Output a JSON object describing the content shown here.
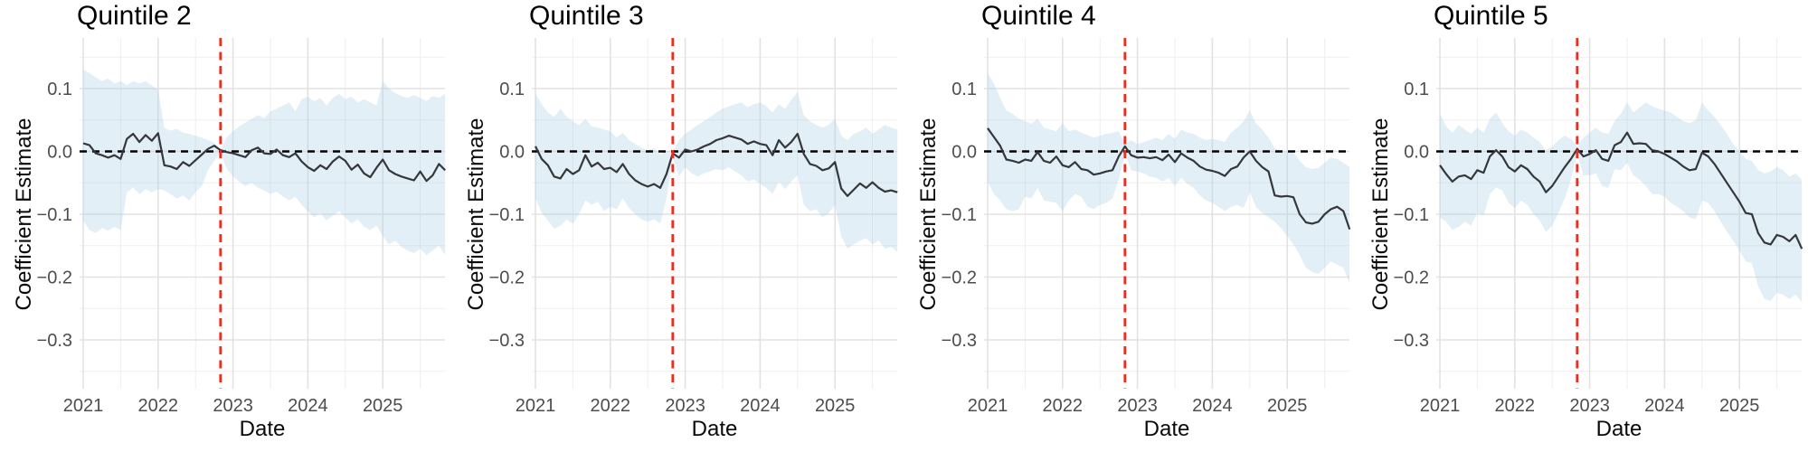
{
  "figure_title": "",
  "colors": {
    "background": "#ffffff",
    "ribbon_fill": "#b0d2e4",
    "ribbon_opacity": 0.35,
    "estimate_line": "#34383c",
    "zero_line": "#000000",
    "reference_line": "#ec2d20",
    "grid_major": "#e2e2e2",
    "grid_minor": "#efefef",
    "tick_text": "#4d4d4d",
    "title_text": "#000000"
  },
  "chart_data": [
    {
      "type": "line",
      "title": "Quintile 2",
      "xlabel": "Date",
      "ylabel": "Coefficient Estimate",
      "x_tick_labels": [
        "2021",
        "2022",
        "2023",
        "2024",
        "2025"
      ],
      "x_tick_values": [
        2021,
        2022,
        2023,
        2024,
        2025
      ],
      "y_tick_labels": [
        "0.1",
        "0.0",
        "−0.1",
        "−0.2",
        "−0.3"
      ],
      "y_tick_values": [
        0.1,
        0,
        -0.1,
        -0.2,
        -0.3
      ],
      "ylim": [
        -0.378,
        0.181
      ],
      "x_start": "2021-01",
      "x_interval": "month",
      "reference_date": "2022-11",
      "zero_line_y": 0,
      "grid": true,
      "legend": "none",
      "series": [
        {
          "name": "estimate",
          "values": [
            0.013,
            0.01,
            -0.003,
            -0.006,
            -0.01,
            -0.006,
            -0.012,
            0.02,
            0.028,
            0.015,
            0.026,
            0.017,
            0.029,
            -0.022,
            -0.024,
            -0.028,
            -0.017,
            -0.023,
            -0.014,
            -0.005,
            0.004,
            0.009,
            0.002,
            -0.001,
            -0.003,
            -0.006,
            -0.009,
            0.002,
            0.006,
            -0.003,
            -0.004,
            0.003,
            -0.006,
            -0.009,
            -0.003,
            -0.016,
            -0.025,
            -0.031,
            -0.022,
            -0.028,
            -0.016,
            -0.008,
            -0.015,
            -0.029,
            -0.021,
            -0.035,
            -0.041,
            -0.026,
            -0.013,
            -0.03,
            -0.036,
            -0.04,
            -0.043,
            -0.046,
            -0.032,
            -0.047,
            -0.038,
            -0.02,
            -0.03
          ]
        },
        {
          "name": "ci_upper",
          "values": [
            0.13,
            0.125,
            0.118,
            0.112,
            0.116,
            0.108,
            0.112,
            0.105,
            0.112,
            0.108,
            0.112,
            0.105,
            0.098,
            0.038,
            0.033,
            0.036,
            0.03,
            0.028,
            0.025,
            0.022,
            0.018,
            0.014,
            0.003,
            0.022,
            0.032,
            0.04,
            0.046,
            0.052,
            0.058,
            0.053,
            0.064,
            0.068,
            0.073,
            0.078,
            0.064,
            0.083,
            0.087,
            0.08,
            0.085,
            0.073,
            0.085,
            0.092,
            0.083,
            0.087,
            0.078,
            0.083,
            0.078,
            0.073,
            0.112,
            0.1,
            0.093,
            0.088,
            0.085,
            0.09,
            0.085,
            0.08,
            0.088,
            0.085,
            0.092
          ]
        },
        {
          "name": "ci_lower",
          "values": [
            -0.11,
            -0.125,
            -0.13,
            -0.122,
            -0.126,
            -0.12,
            -0.125,
            -0.065,
            -0.058,
            -0.068,
            -0.06,
            -0.065,
            -0.06,
            -0.062,
            -0.068,
            -0.075,
            -0.07,
            -0.078,
            -0.065,
            -0.055,
            -0.03,
            -0.015,
            -0.002,
            -0.028,
            -0.04,
            -0.048,
            -0.055,
            -0.05,
            -0.058,
            -0.062,
            -0.068,
            -0.064,
            -0.072,
            -0.078,
            -0.072,
            -0.085,
            -0.095,
            -0.105,
            -0.098,
            -0.11,
            -0.102,
            -0.095,
            -0.105,
            -0.115,
            -0.108,
            -0.12,
            -0.125,
            -0.118,
            -0.135,
            -0.148,
            -0.142,
            -0.152,
            -0.158,
            -0.162,
            -0.155,
            -0.165,
            -0.158,
            -0.15,
            -0.165
          ]
        }
      ]
    },
    {
      "type": "line",
      "title": "Quintile 3",
      "xlabel": "Date",
      "ylabel": "Coefficient Estimate",
      "x_tick_labels": [
        "2021",
        "2022",
        "2023",
        "2024",
        "2025"
      ],
      "x_tick_values": [
        2021,
        2022,
        2023,
        2024,
        2025
      ],
      "y_tick_labels": [
        "0.1",
        "0.0",
        "−0.1",
        "−0.2",
        "−0.3"
      ],
      "y_tick_values": [
        0.1,
        0,
        -0.1,
        -0.2,
        -0.3
      ],
      "ylim": [
        -0.378,
        0.181
      ],
      "x_start": "2021-01",
      "x_interval": "month",
      "reference_date": "2022-11",
      "zero_line_y": 0,
      "grid": true,
      "legend": "none",
      "series": [
        {
          "name": "estimate",
          "values": [
            0.008,
            -0.012,
            -0.022,
            -0.04,
            -0.043,
            -0.028,
            -0.036,
            -0.03,
            -0.006,
            -0.024,
            -0.018,
            -0.028,
            -0.026,
            -0.033,
            -0.02,
            -0.036,
            -0.046,
            -0.052,
            -0.056,
            -0.052,
            -0.058,
            -0.036,
            -0.003,
            -0.01,
            0.003,
            0.0,
            0.003,
            0.008,
            0.012,
            0.018,
            0.021,
            0.025,
            0.022,
            0.019,
            0.012,
            0.016,
            0.012,
            0.01,
            -0.006,
            0.018,
            0.006,
            0.015,
            0.028,
            -0.004,
            -0.02,
            -0.023,
            -0.03,
            -0.027,
            -0.017,
            -0.059,
            -0.071,
            -0.061,
            -0.051,
            -0.058,
            -0.049,
            -0.058,
            -0.064,
            -0.062,
            -0.065
          ]
        },
        {
          "name": "ci_upper",
          "values": [
            0.092,
            0.075,
            0.062,
            0.055,
            0.068,
            0.055,
            0.048,
            0.042,
            0.052,
            0.04,
            0.038,
            0.035,
            0.032,
            0.022,
            0.03,
            0.018,
            0.012,
            0.006,
            0.002,
            0.005,
            -0.005,
            0.002,
            0.0,
            0.018,
            0.028,
            0.035,
            0.042,
            0.048,
            0.055,
            0.062,
            0.068,
            0.072,
            0.075,
            0.078,
            0.07,
            0.075,
            0.078,
            0.072,
            0.062,
            0.075,
            0.068,
            0.082,
            0.095,
            0.058,
            0.048,
            0.042,
            0.038,
            0.042,
            0.052,
            0.025,
            0.018,
            0.028,
            0.032,
            0.038,
            0.028,
            0.035,
            0.042,
            0.038,
            0.035
          ]
        },
        {
          "name": "ci_lower",
          "values": [
            -0.075,
            -0.098,
            -0.11,
            -0.123,
            -0.118,
            -0.108,
            -0.115,
            -0.1,
            -0.078,
            -0.085,
            -0.08,
            -0.095,
            -0.088,
            -0.092,
            -0.075,
            -0.09,
            -0.1,
            -0.108,
            -0.112,
            -0.108,
            -0.115,
            -0.075,
            -0.008,
            -0.04,
            -0.025,
            -0.035,
            -0.04,
            -0.035,
            -0.032,
            -0.028,
            -0.03,
            -0.025,
            -0.032,
            -0.038,
            -0.048,
            -0.045,
            -0.052,
            -0.058,
            -0.068,
            -0.048,
            -0.06,
            -0.048,
            -0.038,
            -0.085,
            -0.095,
            -0.092,
            -0.105,
            -0.098,
            -0.085,
            -0.135,
            -0.155,
            -0.148,
            -0.142,
            -0.138,
            -0.148,
            -0.142,
            -0.155,
            -0.152,
            -0.16
          ]
        }
      ]
    },
    {
      "type": "line",
      "title": "Quintile 4",
      "xlabel": "Date",
      "ylabel": "Coefficient Estimate",
      "x_tick_labels": [
        "2021",
        "2022",
        "2023",
        "2024",
        "2025"
      ],
      "x_tick_values": [
        2021,
        2022,
        2023,
        2024,
        2025
      ],
      "y_tick_labels": [
        "0.1",
        "0.0",
        "−0.1",
        "−0.2",
        "−0.3"
      ],
      "y_tick_values": [
        0.1,
        0,
        -0.1,
        -0.2,
        -0.3
      ],
      "ylim": [
        -0.378,
        0.181
      ],
      "x_start": "2021-01",
      "x_interval": "month",
      "reference_date": "2022-11",
      "zero_line_y": 0,
      "grid": true,
      "legend": "none",
      "series": [
        {
          "name": "estimate",
          "values": [
            0.037,
            0.023,
            0.009,
            -0.013,
            -0.015,
            -0.018,
            -0.013,
            -0.015,
            -0.001,
            -0.015,
            -0.018,
            -0.008,
            -0.022,
            -0.025,
            -0.017,
            -0.028,
            -0.03,
            -0.037,
            -0.035,
            -0.032,
            -0.03,
            -0.008,
            0.008,
            -0.006,
            -0.01,
            -0.009,
            -0.011,
            -0.009,
            -0.014,
            -0.005,
            -0.017,
            -0.003,
            -0.01,
            -0.015,
            -0.024,
            -0.029,
            -0.031,
            -0.034,
            -0.039,
            -0.028,
            -0.024,
            -0.01,
            0.0,
            -0.015,
            -0.025,
            -0.032,
            -0.07,
            -0.072,
            -0.071,
            -0.073,
            -0.1,
            -0.113,
            -0.115,
            -0.112,
            -0.1,
            -0.092,
            -0.088,
            -0.095,
            -0.124
          ]
        },
        {
          "name": "ci_upper",
          "values": [
            0.125,
            0.108,
            0.085,
            0.065,
            0.06,
            0.052,
            0.048,
            0.044,
            0.052,
            0.038,
            0.035,
            0.032,
            0.045,
            0.032,
            0.035,
            0.03,
            0.026,
            0.022,
            0.025,
            0.028,
            0.03,
            0.032,
            0.012,
            0.018,
            0.012,
            0.015,
            0.018,
            0.022,
            0.018,
            0.028,
            0.02,
            0.035,
            0.03,
            0.028,
            0.022,
            0.018,
            0.02,
            0.018,
            0.015,
            0.03,
            0.038,
            0.048,
            0.065,
            0.045,
            0.035,
            0.022,
            0.005,
            0.002,
            0.0,
            -0.002,
            -0.015,
            -0.025,
            -0.028,
            -0.026,
            -0.018,
            -0.01,
            -0.012,
            -0.018,
            -0.025
          ]
        },
        {
          "name": "ci_lower",
          "values": [
            -0.048,
            -0.068,
            -0.078,
            -0.092,
            -0.095,
            -0.092,
            -0.072,
            -0.075,
            -0.058,
            -0.078,
            -0.08,
            -0.082,
            -0.095,
            -0.078,
            -0.068,
            -0.072,
            -0.088,
            -0.092,
            -0.085,
            -0.082,
            -0.075,
            -0.045,
            -0.005,
            -0.03,
            -0.032,
            -0.035,
            -0.04,
            -0.042,
            -0.048,
            -0.042,
            -0.055,
            -0.042,
            -0.052,
            -0.058,
            -0.07,
            -0.078,
            -0.082,
            -0.088,
            -0.095,
            -0.088,
            -0.085,
            -0.09,
            -0.065,
            -0.088,
            -0.098,
            -0.105,
            -0.112,
            -0.122,
            -0.135,
            -0.148,
            -0.165,
            -0.185,
            -0.192,
            -0.195,
            -0.185,
            -0.175,
            -0.18,
            -0.185,
            -0.21
          ]
        }
      ]
    },
    {
      "type": "line",
      "title": "Quintile 5",
      "xlabel": "Date",
      "ylabel": "Coefficient Estimate",
      "x_tick_labels": [
        "2021",
        "2022",
        "2023",
        "2024",
        "2025"
      ],
      "x_tick_values": [
        2021,
        2022,
        2023,
        2024,
        2025
      ],
      "y_tick_labels": [
        "0.1",
        "0.0",
        "−0.1",
        "−0.2",
        "−0.3"
      ],
      "y_tick_values": [
        0.1,
        0,
        -0.1,
        -0.2,
        -0.3
      ],
      "ylim": [
        -0.378,
        0.181
      ],
      "x_start": "2021-01",
      "x_interval": "month",
      "reference_date": "2022-11",
      "zero_line_y": 0,
      "grid": true,
      "legend": "none",
      "series": [
        {
          "name": "estimate",
          "values": [
            -0.022,
            -0.036,
            -0.048,
            -0.04,
            -0.038,
            -0.044,
            -0.03,
            -0.034,
            -0.008,
            0.002,
            -0.008,
            -0.025,
            -0.032,
            -0.022,
            -0.028,
            -0.04,
            -0.048,
            -0.065,
            -0.055,
            -0.04,
            -0.025,
            -0.012,
            0.004,
            -0.008,
            -0.004,
            0.002,
            -0.012,
            -0.015,
            0.01,
            0.015,
            0.03,
            0.012,
            0.013,
            0.012,
            0.002,
            0.0,
            -0.004,
            -0.01,
            -0.016,
            -0.024,
            -0.03,
            -0.028,
            -0.002,
            -0.008,
            -0.02,
            -0.035,
            -0.05,
            -0.065,
            -0.08,
            -0.098,
            -0.1,
            -0.13,
            -0.145,
            -0.148,
            -0.133,
            -0.136,
            -0.143,
            -0.133,
            -0.155
          ]
        },
        {
          "name": "ci_upper",
          "values": [
            0.06,
            0.04,
            0.03,
            0.042,
            0.035,
            0.028,
            0.038,
            0.03,
            0.052,
            0.062,
            0.045,
            0.032,
            0.025,
            0.035,
            0.03,
            0.022,
            0.015,
            0.002,
            0.008,
            0.018,
            0.025,
            0.02,
            0.008,
            0.022,
            0.03,
            0.038,
            0.03,
            0.028,
            0.048,
            0.06,
            0.078,
            0.062,
            0.07,
            0.078,
            0.072,
            0.068,
            0.065,
            0.062,
            0.055,
            0.048,
            0.045,
            0.05,
            0.078,
            0.065,
            0.055,
            0.042,
            0.028,
            0.012,
            0.0,
            -0.012,
            -0.015,
            -0.03,
            -0.035,
            -0.032,
            -0.025,
            -0.03,
            -0.04,
            -0.035,
            -0.045
          ]
        },
        {
          "name": "ci_lower",
          "values": [
            -0.105,
            -0.112,
            -0.125,
            -0.12,
            -0.112,
            -0.118,
            -0.098,
            -0.102,
            -0.068,
            -0.058,
            -0.062,
            -0.082,
            -0.09,
            -0.078,
            -0.085,
            -0.1,
            -0.11,
            -0.128,
            -0.118,
            -0.098,
            -0.075,
            -0.045,
            -0.004,
            -0.038,
            -0.038,
            -0.035,
            -0.055,
            -0.058,
            -0.028,
            -0.03,
            -0.018,
            -0.038,
            -0.045,
            -0.055,
            -0.068,
            -0.068,
            -0.072,
            -0.082,
            -0.088,
            -0.095,
            -0.105,
            -0.108,
            -0.078,
            -0.082,
            -0.095,
            -0.112,
            -0.128,
            -0.142,
            -0.158,
            -0.175,
            -0.178,
            -0.215,
            -0.235,
            -0.238,
            -0.225,
            -0.228,
            -0.235,
            -0.228,
            -0.24
          ]
        }
      ]
    }
  ]
}
